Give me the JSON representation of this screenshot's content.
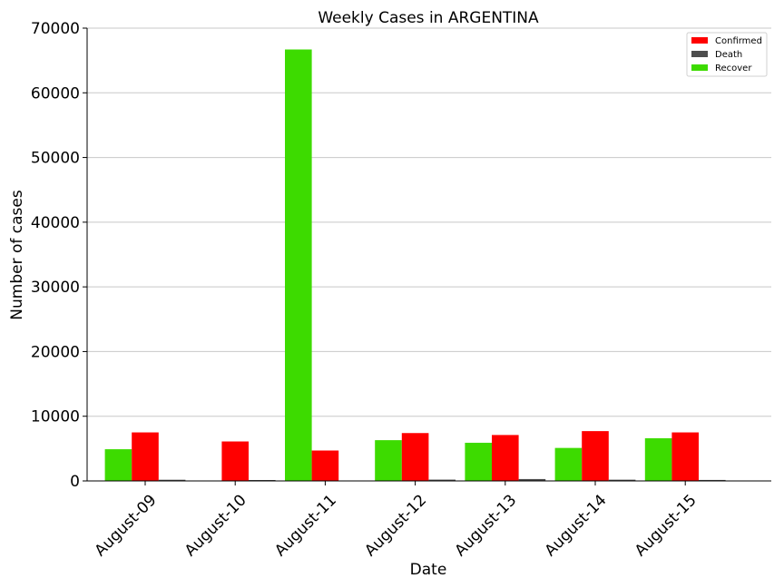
{
  "chart_data": {
    "type": "bar",
    "title": "Weekly Cases in ARGENTINA",
    "xlabel": "Date",
    "ylabel": "Number of cases",
    "categories": [
      "August-09",
      "August-10",
      "August-11",
      "August-12",
      "August-13",
      "August-14",
      "August-15"
    ],
    "ylim": [
      0,
      70000
    ],
    "yticks": [
      0,
      10000,
      20000,
      30000,
      40000,
      50000,
      60000,
      70000
    ],
    "grid": "horizontal",
    "legend_position": "top-right",
    "series": [
      {
        "name": "Recover",
        "color": "#3ddb00",
        "values": [
          4900,
          0,
          66700,
          6300,
          5900,
          5100,
          6600
        ]
      },
      {
        "name": "Confirmed",
        "color": "#ff0000",
        "values": [
          7500,
          6100,
          4700,
          7400,
          7100,
          7700,
          7500
        ]
      },
      {
        "name": "Death",
        "color": "#4d4d4d",
        "values": [
          180,
          140,
          60,
          200,
          290,
          190,
          150
        ]
      }
    ],
    "legend_order": [
      "Confirmed",
      "Death",
      "Recover"
    ]
  }
}
